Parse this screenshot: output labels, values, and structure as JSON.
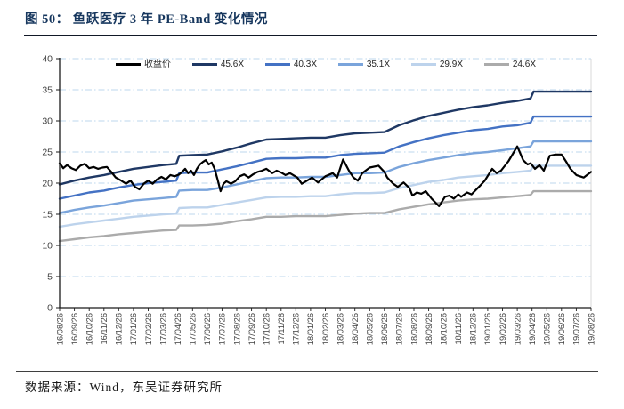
{
  "header": {
    "title": "图 50：  鱼跃医疗 3 年 PE-Band 变化情况"
  },
  "footer": {
    "source_text": "数据来源：Wind，东吴证券研究所"
  },
  "chart_data": {
    "type": "line",
    "title": "鱼跃医疗 3 年 PE-Band",
    "xlabel": "",
    "ylabel": "",
    "ylim": [
      0,
      40
    ],
    "y_ticks": [
      0,
      5,
      10,
      15,
      20,
      25,
      30,
      35,
      40
    ],
    "grid": "horizontal dash-dot",
    "gridline_color": "#bdd7ee",
    "legend_position": "top",
    "x_tick_labels": [
      "16/08/26",
      "16/09/26",
      "16/10/26",
      "16/11/26",
      "16/12/26",
      "17/01/26",
      "17/02/26",
      "17/03/26",
      "17/04/26",
      "17/05/26",
      "17/06/26",
      "17/07/26",
      "17/08/26",
      "17/09/26",
      "17/10/26",
      "17/11/26",
      "17/12/26",
      "18/01/26",
      "18/02/26",
      "18/03/26",
      "18/04/26",
      "18/05/26",
      "18/06/26",
      "18/07/26",
      "18/08/26",
      "18/09/26",
      "18/10/26",
      "18/11/26",
      "18/12/26",
      "19/01/26",
      "19/02/26",
      "19/03/26",
      "19/04/26",
      "19/05/26",
      "19/06/26",
      "19/07/26",
      "19/08/26"
    ],
    "band_x": [
      0,
      1,
      2,
      3,
      4,
      5,
      6,
      7,
      7.9,
      8.1,
      9,
      10,
      11,
      12,
      13,
      14,
      15,
      16,
      17,
      18,
      19,
      20,
      21,
      22,
      23,
      24,
      25,
      26,
      27,
      28,
      29,
      30,
      31,
      31.9,
      32.1,
      33,
      34,
      35,
      36
    ],
    "series": [
      {
        "name": "收盘价",
        "color": "#000000",
        "width": 2.2,
        "x": [
          0,
          0.25,
          0.5,
          0.8,
          1.1,
          1.4,
          1.7,
          2.0,
          2.3,
          2.6,
          2.9,
          3.2,
          3.5,
          3.8,
          4.1,
          4.5,
          4.8,
          5.1,
          5.4,
          5.7,
          6.0,
          6.3,
          6.6,
          6.9,
          7.2,
          7.5,
          7.8,
          8.1,
          8.3,
          8.5,
          8.7,
          8.9,
          9.1,
          9.3,
          9.5,
          9.7,
          9.9,
          10.1,
          10.3,
          10.5,
          10.7,
          10.9,
          11.1,
          11.3,
          11.6,
          11.9,
          12.2,
          12.5,
          12.8,
          13.1,
          13.4,
          13.7,
          14.0,
          14.4,
          14.7,
          15.0,
          15.3,
          15.6,
          16.1,
          16.4,
          16.9,
          17.1,
          17.5,
          18.0,
          18.5,
          18.8,
          19.2,
          19.6,
          19.9,
          20.2,
          20.5,
          21.0,
          21.6,
          22.0,
          22.2,
          22.6,
          22.9,
          23.3,
          23.7,
          23.9,
          24.2,
          24.5,
          24.8,
          25.2,
          25.7,
          26.1,
          26.4,
          26.7,
          27.0,
          27.2,
          27.6,
          27.9,
          28.4,
          28.8,
          29.3,
          29.6,
          29.9,
          30.4,
          31.0,
          31.4,
          31.7,
          31.9,
          32.2,
          32.5,
          32.8,
          33.2,
          33.6,
          34.0,
          34.3,
          34.6,
          35.0,
          35.5,
          36.0
        ],
        "y": [
          23.2,
          22.4,
          22.9,
          22.4,
          22.1,
          22.8,
          23.1,
          22.4,
          22.6,
          22.3,
          22.5,
          22.6,
          21.8,
          20.9,
          20.5,
          19.9,
          20.4,
          19.4,
          19.0,
          19.9,
          20.4,
          19.9,
          20.6,
          21.0,
          20.6,
          21.3,
          21.1,
          21.4,
          21.8,
          22.3,
          21.6,
          22.0,
          21.3,
          22.3,
          23.0,
          23.4,
          23.7,
          23.0,
          23.3,
          22.3,
          20.6,
          18.7,
          19.9,
          20.3,
          19.9,
          20.3,
          21.1,
          21.4,
          20.9,
          21.4,
          21.8,
          22.0,
          22.3,
          21.6,
          22.0,
          21.7,
          21.3,
          21.6,
          20.9,
          19.9,
          20.6,
          20.9,
          20.1,
          21.1,
          21.6,
          20.9,
          23.8,
          22.0,
          20.9,
          20.4,
          21.6,
          22.5,
          22.8,
          21.8,
          20.9,
          19.9,
          19.4,
          20.1,
          19.2,
          18.0,
          18.5,
          18.3,
          18.7,
          17.5,
          16.3,
          17.8,
          18.0,
          17.5,
          18.2,
          17.8,
          18.5,
          18.2,
          19.4,
          20.4,
          22.3,
          21.6,
          22.0,
          23.5,
          25.9,
          23.7,
          23.0,
          23.2,
          22.3,
          22.9,
          22.0,
          24.4,
          24.6,
          24.6,
          23.5,
          22.3,
          21.3,
          20.9,
          21.8
        ]
      },
      {
        "name": "45.6X",
        "color": "#1f3864",
        "width": 2.4,
        "y": [
          19.8,
          20.4,
          20.9,
          21.3,
          21.8,
          22.3,
          22.6,
          22.9,
          23.1,
          24.4,
          24.5,
          24.6,
          25.1,
          25.7,
          26.4,
          27.0,
          27.1,
          27.2,
          27.3,
          27.3,
          27.7,
          28.0,
          28.1,
          28.2,
          29.3,
          30.1,
          30.8,
          31.3,
          31.8,
          32.2,
          32.5,
          32.9,
          33.2,
          33.6,
          34.7,
          34.7,
          34.7,
          34.7,
          34.7
        ]
      },
      {
        "name": "40.3X",
        "color": "#4472c4",
        "width": 2.4,
        "y": [
          17.5,
          18.0,
          18.5,
          18.8,
          19.3,
          19.7,
          20.0,
          20.2,
          20.4,
          21.6,
          21.7,
          21.7,
          22.2,
          22.7,
          23.3,
          23.9,
          24.0,
          24.0,
          24.1,
          24.1,
          24.5,
          24.7,
          24.8,
          24.9,
          25.9,
          26.6,
          27.2,
          27.7,
          28.1,
          28.5,
          28.7,
          29.1,
          29.3,
          29.7,
          30.7,
          30.7,
          30.7,
          30.7,
          30.7
        ]
      },
      {
        "name": "35.1X",
        "color": "#7aa4db",
        "width": 2.4,
        "y": [
          15.2,
          15.7,
          16.1,
          16.4,
          16.8,
          17.2,
          17.4,
          17.6,
          17.8,
          18.8,
          18.9,
          18.9,
          19.3,
          19.8,
          20.3,
          20.8,
          20.9,
          20.9,
          21.0,
          21.0,
          21.3,
          21.6,
          21.6,
          21.7,
          22.6,
          23.2,
          23.7,
          24.1,
          24.5,
          24.8,
          25.0,
          25.3,
          25.6,
          25.9,
          26.7,
          26.7,
          26.7,
          26.7,
          26.7
        ]
      },
      {
        "name": "29.9X",
        "color": "#bdd3ec",
        "width": 2.4,
        "y": [
          13.0,
          13.4,
          13.7,
          14.0,
          14.3,
          14.6,
          14.8,
          15.0,
          15.1,
          16.0,
          16.1,
          16.1,
          16.5,
          16.9,
          17.3,
          17.7,
          17.8,
          17.8,
          17.9,
          17.9,
          18.2,
          18.4,
          18.4,
          18.5,
          19.2,
          19.7,
          20.2,
          20.5,
          20.9,
          21.1,
          21.3,
          21.6,
          21.8,
          22.0,
          22.8,
          22.8,
          22.8,
          22.8,
          22.8
        ]
      },
      {
        "name": "24.6X",
        "color": "#ababab",
        "width": 2.4,
        "y": [
          10.7,
          11.0,
          11.3,
          11.5,
          11.8,
          12.0,
          12.2,
          12.4,
          12.5,
          13.2,
          13.2,
          13.3,
          13.5,
          13.9,
          14.2,
          14.6,
          14.6,
          14.7,
          14.7,
          14.7,
          14.9,
          15.1,
          15.2,
          15.2,
          15.8,
          16.2,
          16.6,
          16.9,
          17.2,
          17.4,
          17.5,
          17.7,
          17.9,
          18.1,
          18.7,
          18.7,
          18.7,
          18.7,
          18.7
        ]
      }
    ]
  }
}
